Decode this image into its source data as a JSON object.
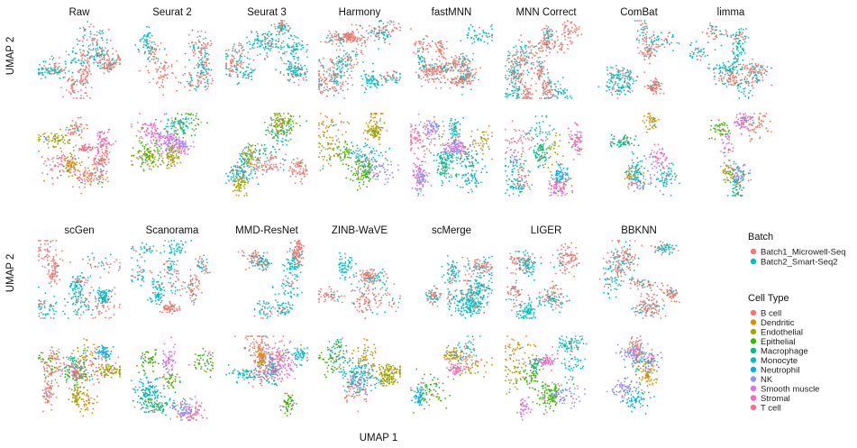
{
  "chart_data": {
    "type": "scatter",
    "xlabel": "UMAP 1",
    "ylabel": "UMAP 2",
    "methods_row1": [
      "Raw",
      "Seurat 2",
      "Seurat 3",
      "Harmony",
      "fastMNN",
      "MNN Correct",
      "ComBat",
      "limma"
    ],
    "methods_row2": [
      "scGen",
      "Scanorama",
      "MMD-ResNet",
      "ZINB-WaVE",
      "scMerge",
      "LIGER",
      "BBKNN"
    ],
    "legend_batch": {
      "title": "Batch",
      "entries": [
        {
          "name": "Batch1_Microwell-Seq",
          "color": "#f8766d"
        },
        {
          "name": "Batch2_Smart-Seq2",
          "color": "#00bfc4"
        }
      ]
    },
    "legend_celltype": {
      "title": "Cell Type",
      "entries": [
        {
          "name": "B cell",
          "color": "#f8766d"
        },
        {
          "name": "Dendritic",
          "color": "#d89000"
        },
        {
          "name": "Endothelial",
          "color": "#a3a500"
        },
        {
          "name": "Epithelial",
          "color": "#39b600"
        },
        {
          "name": "Macrophage",
          "color": "#00bf7d"
        },
        {
          "name": "Monocyte",
          "color": "#00bfc4"
        },
        {
          "name": "Neutrophil",
          "color": "#00b0f6"
        },
        {
          "name": "NK",
          "color": "#9590ff"
        },
        {
          "name": "Smooth muscle",
          "color": "#e76bf3"
        },
        {
          "name": "Stromal",
          "color": "#ff62bc"
        },
        {
          "name": "T cell",
          "color": "#ff6c8f"
        }
      ]
    }
  }
}
